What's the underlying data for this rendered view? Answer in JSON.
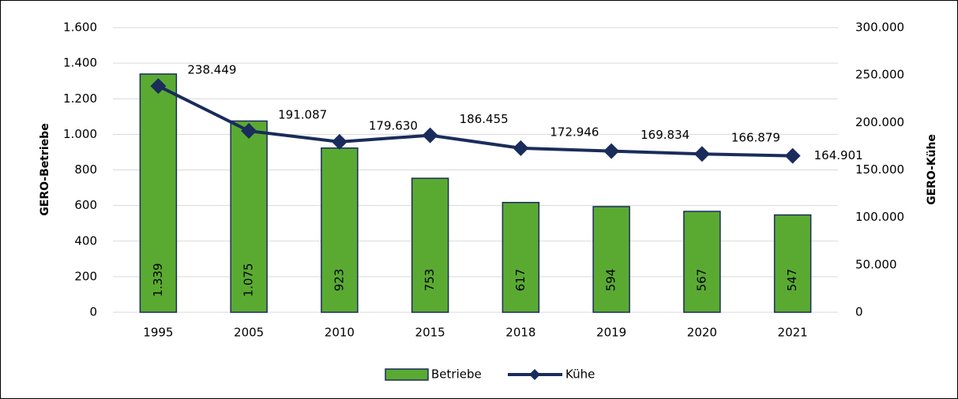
{
  "chart_data": {
    "type": "bar-line",
    "categories": [
      "1995",
      "2005",
      "2010",
      "2015",
      "2018",
      "2019",
      "2020",
      "2021"
    ],
    "ylabel": "GERO-Betriebe",
    "y2label": "GERO-Kühe",
    "ylim": [
      0,
      1600
    ],
    "yticks": [
      0,
      200,
      400,
      600,
      800,
      {
        "value": 1000,
        "label": "1.000"
      },
      {
        "value": 1200,
        "label": "1.200"
      },
      {
        "value": 1400,
        "label": "1.400"
      },
      {
        "value": 1600,
        "label": "1.600"
      }
    ],
    "y2lim": [
      0,
      300000
    ],
    "y2ticks": [
      0,
      {
        "value": 50000,
        "label": "50.000"
      },
      {
        "value": 100000,
        "label": "100.000"
      },
      {
        "value": 150000,
        "label": "150.000"
      },
      {
        "value": 200000,
        "label": "200.000"
      },
      {
        "value": 250000,
        "label": "250.000"
      },
      {
        "value": 300000,
        "label": "300.000"
      }
    ],
    "grid": true,
    "series": [
      {
        "name": "Betriebe",
        "color": "#5aaa32",
        "values": [
          1339,
          1075,
          923,
          753,
          617,
          594,
          567,
          547
        ],
        "value_labels": [
          "1.339",
          "1.075",
          "923",
          "753",
          "617",
          "594",
          "567",
          "547"
        ]
      },
      {
        "name": "Kühe",
        "color": "#1a2c5b",
        "axis": "y2",
        "values": [
          238449,
          191087,
          179630,
          186455,
          172946,
          169834,
          166879,
          164901
        ],
        "value_labels": [
          "238.449",
          "191.087",
          "179.630",
          "186.455",
          "172.946",
          "169.834",
          "166.879",
          "164.901"
        ]
      }
    ]
  }
}
